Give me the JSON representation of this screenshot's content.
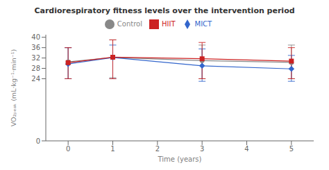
{
  "chart_data": {
    "type": "line",
    "title": "Cardiorespiratory fitness levels over the intervention period",
    "x_label": "Time (years)",
    "y_label": "VO₂ₚₑₐₖ (mL·kg⁻¹·min⁻¹)",
    "x": [
      0,
      1,
      3,
      5
    ],
    "series": [
      {
        "name": "Control",
        "color": "#888888",
        "marker": "circle",
        "line_style": "solid",
        "values": [
          30.5,
          32.2,
          31.0,
          30.3
        ],
        "yerr_lo": [
          6.5,
          7.8,
          7.0,
          6.3
        ],
        "yerr_hi": [
          5.5,
          6.8,
          6.0,
          6.7
        ]
      },
      {
        "name": "MICT",
        "color": "#3366cc",
        "marker": "diamond",
        "line_style": "solid",
        "values": [
          29.7,
          32.2,
          29.0,
          27.8
        ],
        "yerr_lo": [
          5.7,
          8.2,
          6.0,
          4.8
        ],
        "yerr_hi": [
          6.3,
          4.8,
          6.5,
          5.2
        ]
      },
      {
        "name": "HIIT",
        "color": "#cc2222",
        "marker": "square",
        "line_style": "solid",
        "values": [
          30.2,
          32.3,
          31.7,
          30.8
        ],
        "yerr_lo": [
          6.2,
          8.3,
          7.7,
          6.8
        ],
        "yerr_hi": [
          5.8,
          6.7,
          6.3,
          5.2
        ]
      }
    ],
    "xlim": [
      -0.5,
      5.5
    ],
    "ylim": [
      0,
      41
    ],
    "xticks": [
      0,
      1,
      2,
      3,
      4,
      5
    ],
    "yticks": [
      0,
      24,
      28,
      32,
      36,
      40
    ],
    "grid": false,
    "legend": "top"
  }
}
